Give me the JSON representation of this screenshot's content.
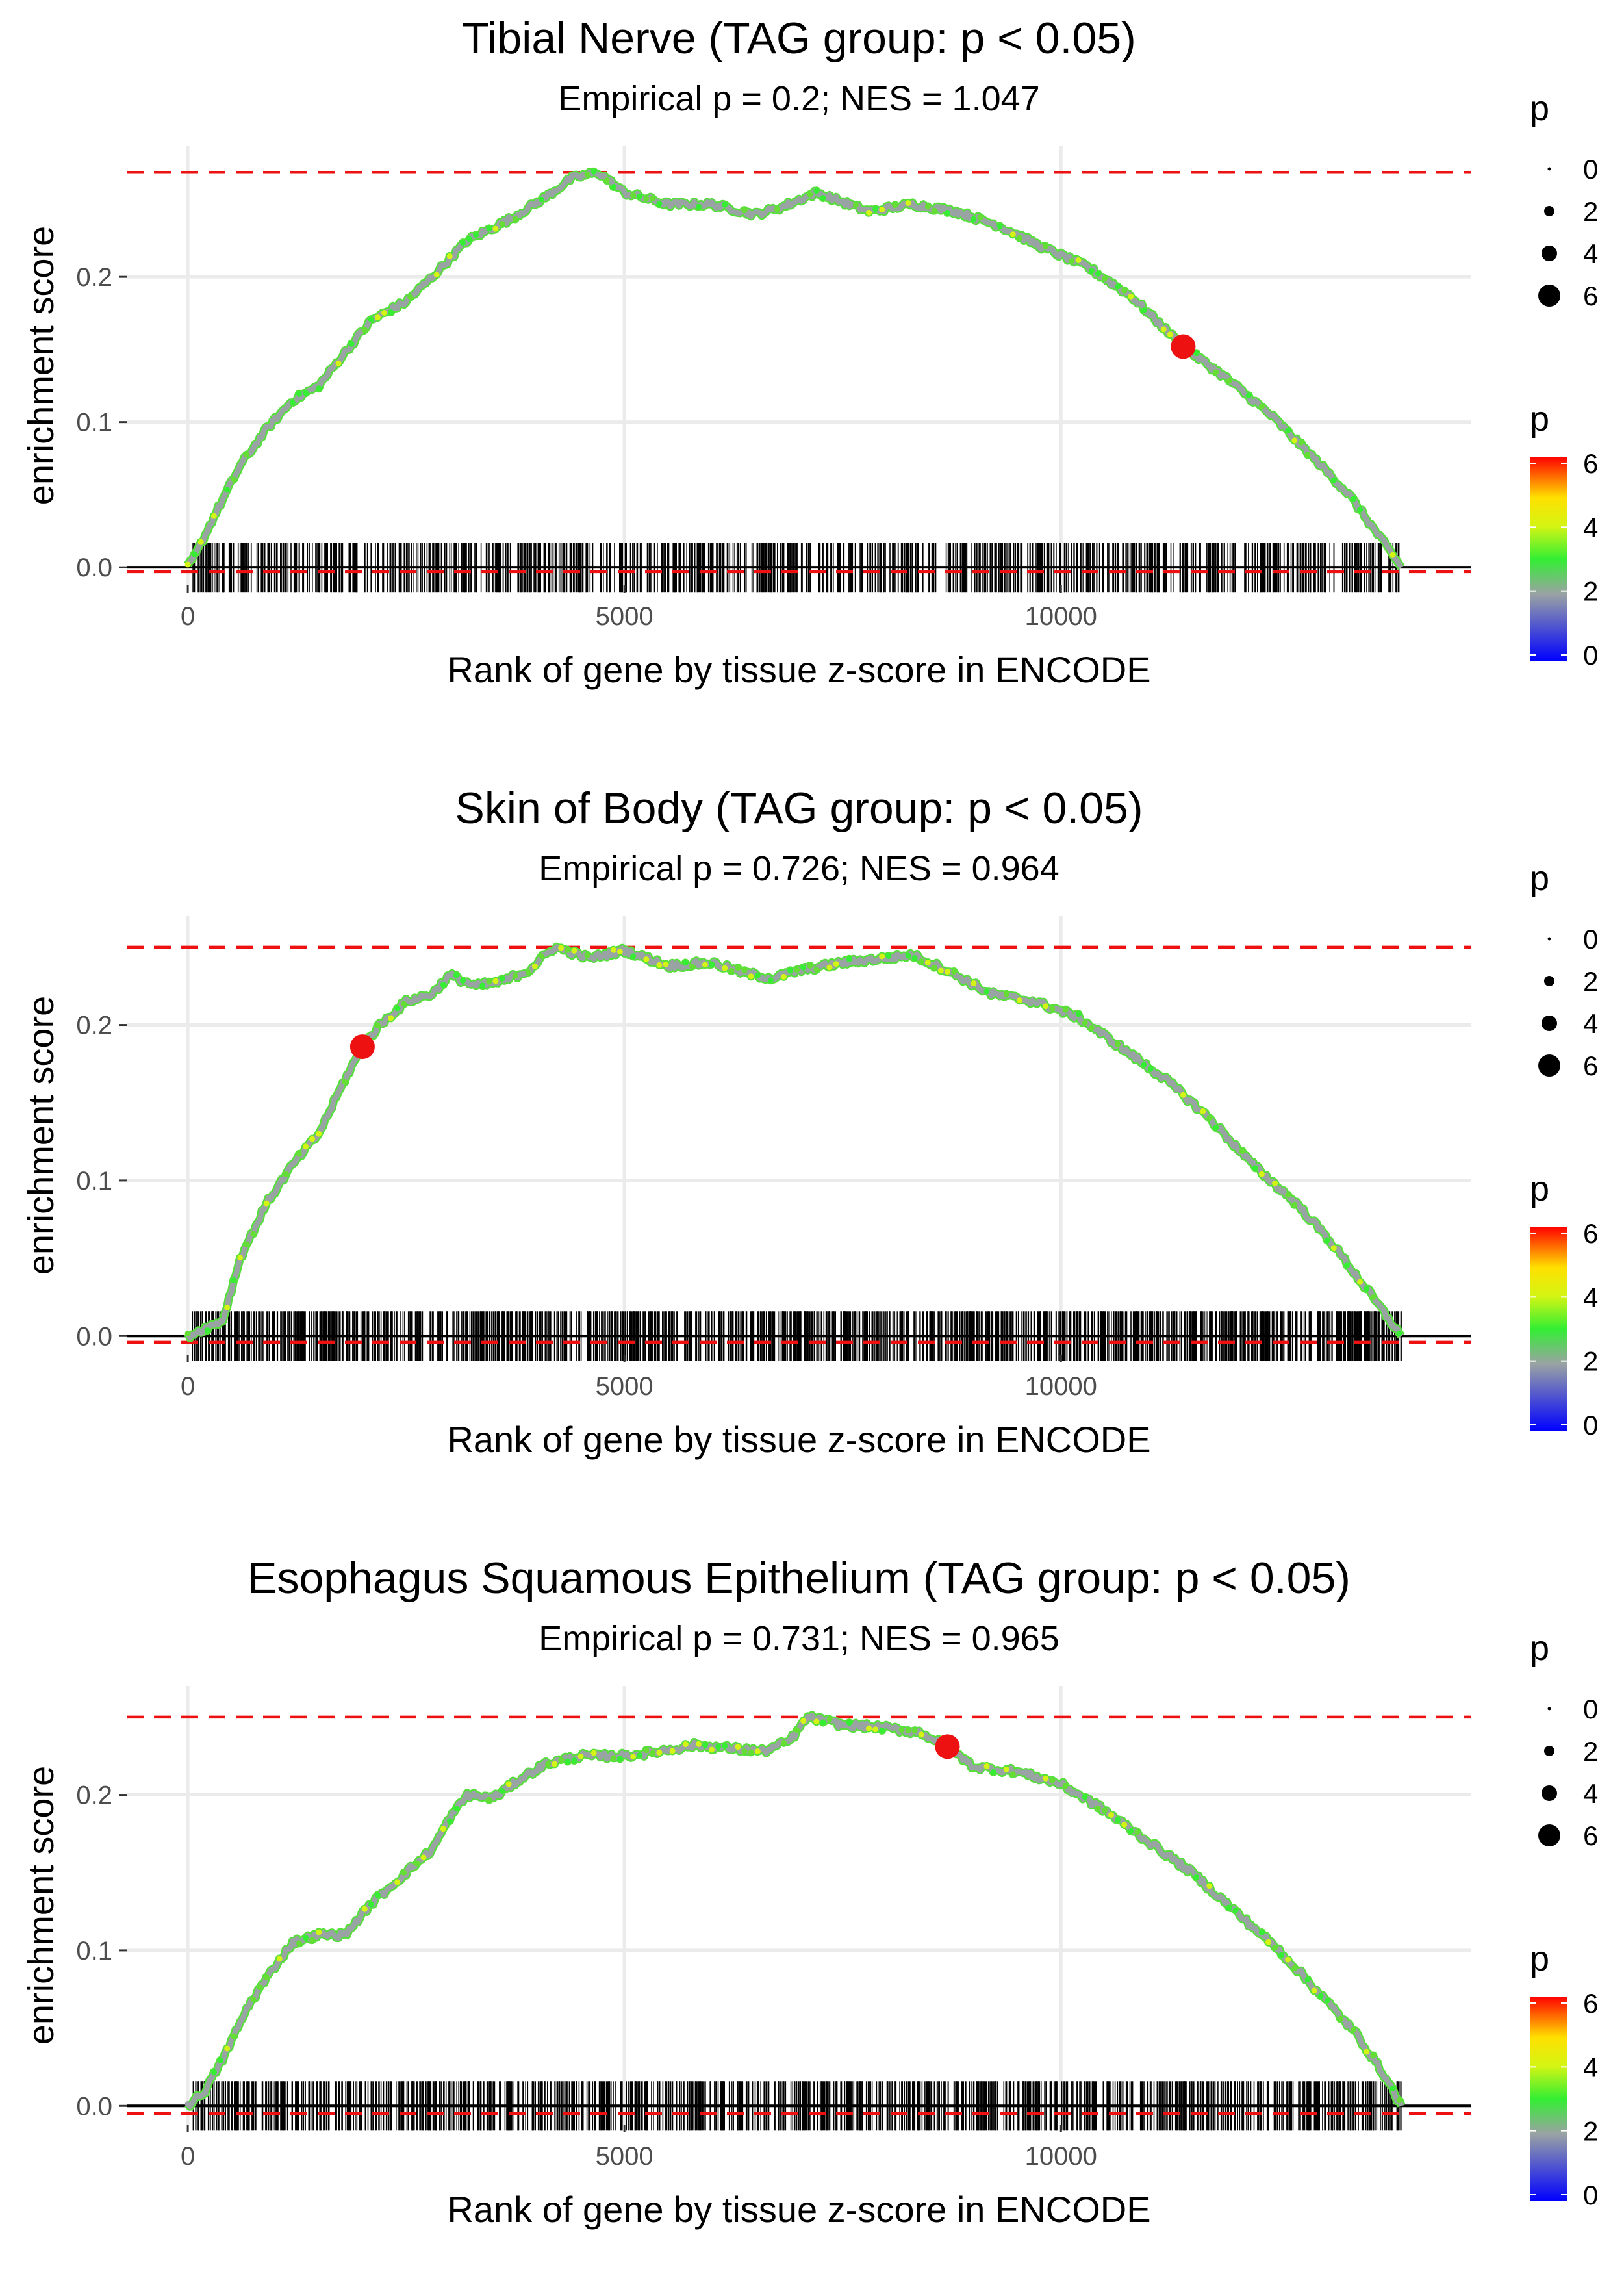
{
  "figure": {
    "legend_title": "p",
    "size_legend_labels": [
      "0",
      "2",
      "4",
      "6"
    ],
    "color_legend_labels": [
      "6",
      "4",
      "2",
      "0"
    ]
  },
  "chart_data": [
    {
      "type": "line",
      "title": "Tibial Nerve (TAG group: p < 0.05)",
      "subtitle": "Empirical p = 0.2; NES = 1.047",
      "xlabel": "Rank of gene by tissue z-score in ENCODE",
      "ylabel": "enrichment score",
      "xlim": [
        -700,
        14700
      ],
      "ylim": [
        -0.012,
        0.29
      ],
      "x_ticks": [
        0,
        5000,
        10000
      ],
      "x_tick_labels": [
        "0",
        "5000",
        "10000"
      ],
      "y_ticks": [
        0.0,
        0.1,
        0.2
      ],
      "y_tick_labels": [
        "0.0",
        "0.1",
        "0.2"
      ],
      "max_es": 0.272,
      "min_es": -0.003,
      "highlight": {
        "x": 11400,
        "y": 0.152
      },
      "curve": [
        [
          0,
          0
        ],
        [
          100,
          0.01
        ],
        [
          300,
          0.035
        ],
        [
          600,
          0.07
        ],
        [
          900,
          0.095
        ],
        [
          1200,
          0.115
        ],
        [
          1500,
          0.125
        ],
        [
          1800,
          0.148
        ],
        [
          2100,
          0.17
        ],
        [
          2500,
          0.183
        ],
        [
          2800,
          0.2
        ],
        [
          3200,
          0.225
        ],
        [
          3700,
          0.24
        ],
        [
          4100,
          0.255
        ],
        [
          4400,
          0.268
        ],
        [
          4700,
          0.272
        ],
        [
          5000,
          0.258
        ],
        [
          5500,
          0.25
        ],
        [
          6000,
          0.25
        ],
        [
          6500,
          0.243
        ],
        [
          6800,
          0.248
        ],
        [
          7200,
          0.258
        ],
        [
          7800,
          0.245
        ],
        [
          8300,
          0.25
        ],
        [
          8800,
          0.245
        ],
        [
          9300,
          0.235
        ],
        [
          9800,
          0.22
        ],
        [
          10300,
          0.207
        ],
        [
          10800,
          0.187
        ],
        [
          11400,
          0.152
        ],
        [
          11900,
          0.13
        ],
        [
          12400,
          0.105
        ],
        [
          12900,
          0.075
        ],
        [
          13300,
          0.05
        ],
        [
          13600,
          0.025
        ],
        [
          13900,
          0
        ]
      ],
      "rug_range": [
        50,
        13900
      ],
      "rug_count": 900
    },
    {
      "type": "line",
      "title": "Skin of Body (TAG group: p < 0.05)",
      "subtitle": "Empirical p = 0.726; NES = 0.964",
      "xlabel": "Rank of gene by tissue z-score in ENCODE",
      "ylabel": "enrichment score",
      "xlim": [
        -700,
        14700
      ],
      "ylim": [
        -0.012,
        0.27
      ],
      "x_ticks": [
        0,
        5000,
        10000
      ],
      "x_tick_labels": [
        "0",
        "5000",
        "10000"
      ],
      "y_ticks": [
        0.0,
        0.1,
        0.2
      ],
      "y_tick_labels": [
        "0.0",
        "0.1",
        "0.2"
      ],
      "max_es": 0.25,
      "min_es": -0.004,
      "highlight": {
        "x": 2000,
        "y": 0.186
      },
      "curve": [
        [
          0,
          0
        ],
        [
          200,
          0.005
        ],
        [
          400,
          0.01
        ],
        [
          600,
          0.05
        ],
        [
          900,
          0.085
        ],
        [
          1200,
          0.11
        ],
        [
          1500,
          0.13
        ],
        [
          1800,
          0.165
        ],
        [
          2000,
          0.186
        ],
        [
          2200,
          0.2
        ],
        [
          2500,
          0.215
        ],
        [
          2800,
          0.22
        ],
        [
          3000,
          0.232
        ],
        [
          3300,
          0.225
        ],
        [
          3600,
          0.228
        ],
        [
          3900,
          0.235
        ],
        [
          4200,
          0.25
        ],
        [
          4600,
          0.243
        ],
        [
          5000,
          0.248
        ],
        [
          5500,
          0.238
        ],
        [
          6000,
          0.24
        ],
        [
          6400,
          0.233
        ],
        [
          6700,
          0.23
        ],
        [
          7000,
          0.235
        ],
        [
          7500,
          0.24
        ],
        [
          8000,
          0.243
        ],
        [
          8300,
          0.245
        ],
        [
          8700,
          0.235
        ],
        [
          9200,
          0.22
        ],
        [
          9700,
          0.215
        ],
        [
          10200,
          0.205
        ],
        [
          10700,
          0.185
        ],
        [
          11200,
          0.165
        ],
        [
          11700,
          0.14
        ],
        [
          12200,
          0.11
        ],
        [
          12700,
          0.085
        ],
        [
          13100,
          0.06
        ],
        [
          13500,
          0.03
        ],
        [
          13900,
          0
        ]
      ],
      "rug_range": [
        50,
        13900
      ],
      "rug_count": 1200
    },
    {
      "type": "line",
      "title": "Esophagus Squamous Epithelium (TAG group: p < 0.05)",
      "subtitle": "Empirical p = 0.731; NES = 0.965",
      "xlabel": "Rank of gene by tissue z-score in ENCODE",
      "ylabel": "enrichment score",
      "xlim": [
        -700,
        14700
      ],
      "ylim": [
        -0.012,
        0.27
      ],
      "x_ticks": [
        0,
        5000,
        10000
      ],
      "x_tick_labels": [
        "0",
        "5000",
        "10000"
      ],
      "y_ticks": [
        0.0,
        0.1,
        0.2
      ],
      "y_tick_labels": [
        "0.0",
        "0.1",
        "0.2"
      ],
      "max_es": 0.25,
      "min_es": -0.005,
      "highlight": {
        "x": 8700,
        "y": 0.231
      },
      "curve": [
        [
          0,
          0
        ],
        [
          200,
          0.01
        ],
        [
          400,
          0.03
        ],
        [
          700,
          0.065
        ],
        [
          1000,
          0.09
        ],
        [
          1200,
          0.105
        ],
        [
          1500,
          0.11
        ],
        [
          1800,
          0.11
        ],
        [
          2100,
          0.13
        ],
        [
          2400,
          0.145
        ],
        [
          2800,
          0.165
        ],
        [
          3000,
          0.185
        ],
        [
          3200,
          0.2
        ],
        [
          3500,
          0.198
        ],
        [
          3800,
          0.21
        ],
        [
          4100,
          0.22
        ],
        [
          4500,
          0.225
        ],
        [
          5000,
          0.225
        ],
        [
          5400,
          0.228
        ],
        [
          5800,
          0.232
        ],
        [
          6200,
          0.23
        ],
        [
          6600,
          0.228
        ],
        [
          6900,
          0.235
        ],
        [
          7100,
          0.25
        ],
        [
          7500,
          0.245
        ],
        [
          8000,
          0.243
        ],
        [
          8400,
          0.24
        ],
        [
          8700,
          0.231
        ],
        [
          9000,
          0.218
        ],
        [
          9500,
          0.215
        ],
        [
          10000,
          0.207
        ],
        [
          10500,
          0.19
        ],
        [
          11000,
          0.17
        ],
        [
          11500,
          0.15
        ],
        [
          12000,
          0.125
        ],
        [
          12500,
          0.1
        ],
        [
          13000,
          0.07
        ],
        [
          13400,
          0.045
        ],
        [
          13700,
          0.02
        ],
        [
          13900,
          0
        ]
      ],
      "rug_range": [
        50,
        13900
      ],
      "rug_count": 1000
    }
  ]
}
